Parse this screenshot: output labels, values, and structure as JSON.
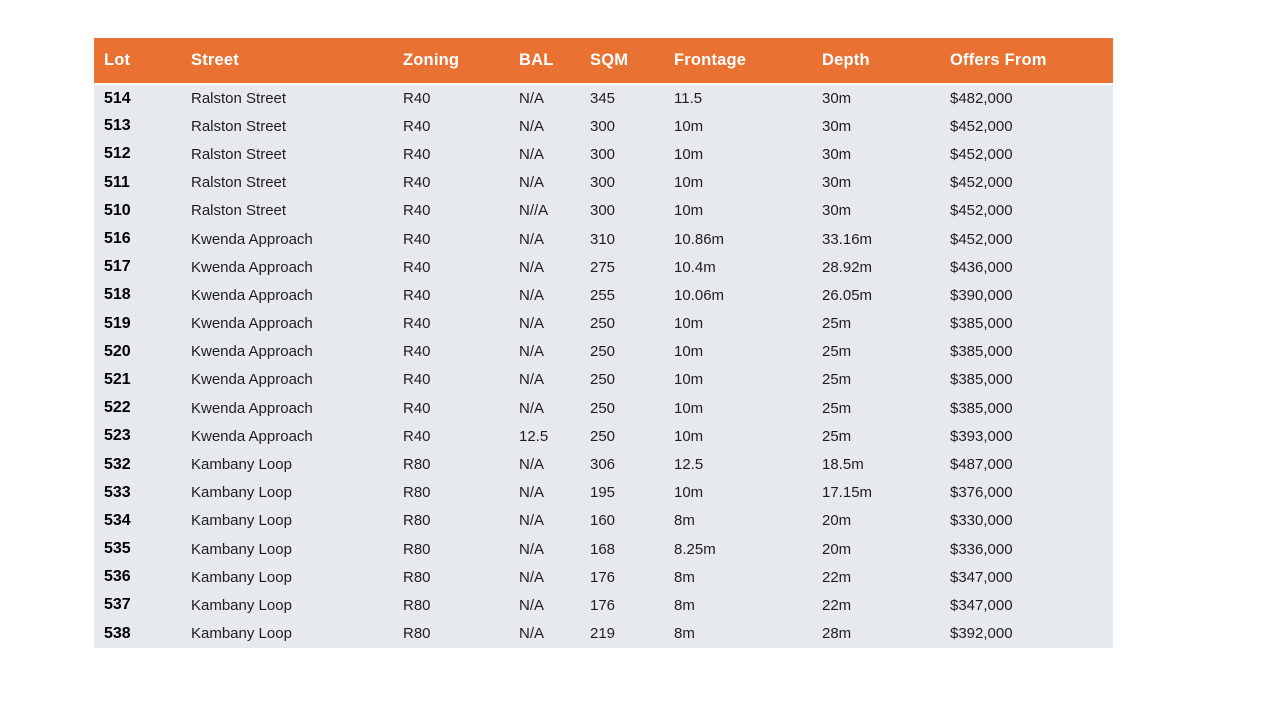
{
  "page": {
    "background": "#FFFFFF"
  },
  "table": {
    "colors": {
      "header_bg": "#E97132",
      "header_text": "#FFFFFF",
      "body_bg": "#E7EAED",
      "body_text": "#1E1E1E",
      "lot_text": "#000000"
    },
    "columns": [
      {
        "key": "lot",
        "label": "Lot"
      },
      {
        "key": "street",
        "label": "Street"
      },
      {
        "key": "zoning",
        "label": "Zoning"
      },
      {
        "key": "bal",
        "label": "BAL"
      },
      {
        "key": "sqm",
        "label": "SQM"
      },
      {
        "key": "frontage",
        "label": "Frontage"
      },
      {
        "key": "depth",
        "label": "Depth"
      },
      {
        "key": "offers",
        "label": "Offers From"
      }
    ],
    "rows": [
      [
        "514",
        "Ralston Street",
        "R40",
        "N/A",
        "345",
        "11.5",
        "30m",
        "$482,000"
      ],
      [
        "513",
        "Ralston Street",
        "R40",
        "N/A",
        "300",
        "10m",
        "30m",
        "$452,000"
      ],
      [
        "512",
        "Ralston Street",
        "R40",
        "N/A",
        "300",
        "10m",
        "30m",
        "$452,000"
      ],
      [
        "511",
        "Ralston Street",
        "R40",
        "N/A",
        "300",
        "10m",
        "30m",
        "$452,000"
      ],
      [
        "510",
        "Ralston Street",
        "R40",
        "N//A",
        "300",
        "10m",
        "30m",
        "$452,000"
      ],
      [
        "516",
        "Kwenda Approach",
        "R40",
        "N/A",
        "310",
        "10.86m",
        "33.16m",
        "$452,000"
      ],
      [
        "517",
        "Kwenda Approach",
        "R40",
        "N/A",
        "275",
        "10.4m",
        "28.92m",
        "$436,000"
      ],
      [
        "518",
        "Kwenda Approach",
        "R40",
        "N/A",
        "255",
        "10.06m",
        "26.05m",
        "$390,000"
      ],
      [
        "519",
        "Kwenda Approach",
        "R40",
        "N/A",
        "250",
        "10m",
        "25m",
        "$385,000"
      ],
      [
        "520",
        "Kwenda Approach",
        "R40",
        "N/A",
        "250",
        "10m",
        "25m",
        "$385,000"
      ],
      [
        "521",
        "Kwenda Approach",
        "R40",
        "N/A",
        "250",
        "10m",
        "25m",
        "$385,000"
      ],
      [
        "522",
        "Kwenda Approach",
        "R40",
        "N/A",
        "250",
        "10m",
        "25m",
        "$385,000"
      ],
      [
        "523",
        "Kwenda Approach",
        "R40",
        "12.5",
        "250",
        "10m",
        "25m",
        "$393,000"
      ],
      [
        "532",
        "Kambany Loop",
        "R80",
        "N/A",
        "306",
        "12.5",
        "18.5m",
        "$487,000"
      ],
      [
        "533",
        "Kambany Loop",
        "R80",
        "N/A",
        "195",
        "10m",
        "17.15m",
        "$376,000"
      ],
      [
        "534",
        "Kambany Loop",
        "R80",
        "N/A",
        "160",
        "8m",
        "20m",
        "$330,000"
      ],
      [
        "535",
        "Kambany Loop",
        "R80",
        "N/A",
        "168",
        "8.25m",
        "20m",
        "$336,000"
      ],
      [
        "536",
        "Kambany Loop",
        "R80",
        "N/A",
        "176",
        "8m",
        "22m",
        "$347,000"
      ],
      [
        "537",
        "Kambany Loop",
        "R80",
        "N/A",
        "176",
        "8m",
        "22m",
        "$347,000"
      ],
      [
        "538",
        "Kambany Loop",
        "R80",
        "N/A",
        "219",
        "8m",
        "28m",
        "$392,000"
      ]
    ]
  }
}
